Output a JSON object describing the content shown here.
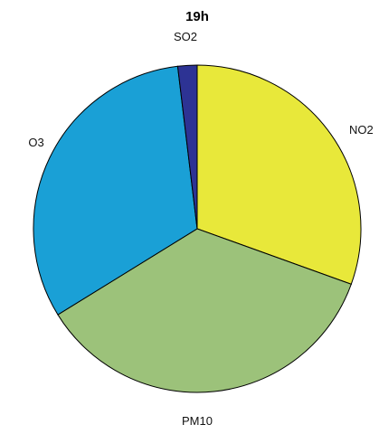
{
  "chart_data": {
    "type": "pie",
    "title": "19h",
    "categories": [
      "NO2",
      "PM10",
      "O3",
      "SO2"
    ],
    "values": [
      30.5,
      35.7,
      31.9,
      1.9
    ],
    "colors": [
      "#e8e83a",
      "#9cc27a",
      "#1aa0d6",
      "#2d3394"
    ],
    "start_angle": "top",
    "direction": "clockwise",
    "legend": "none"
  }
}
